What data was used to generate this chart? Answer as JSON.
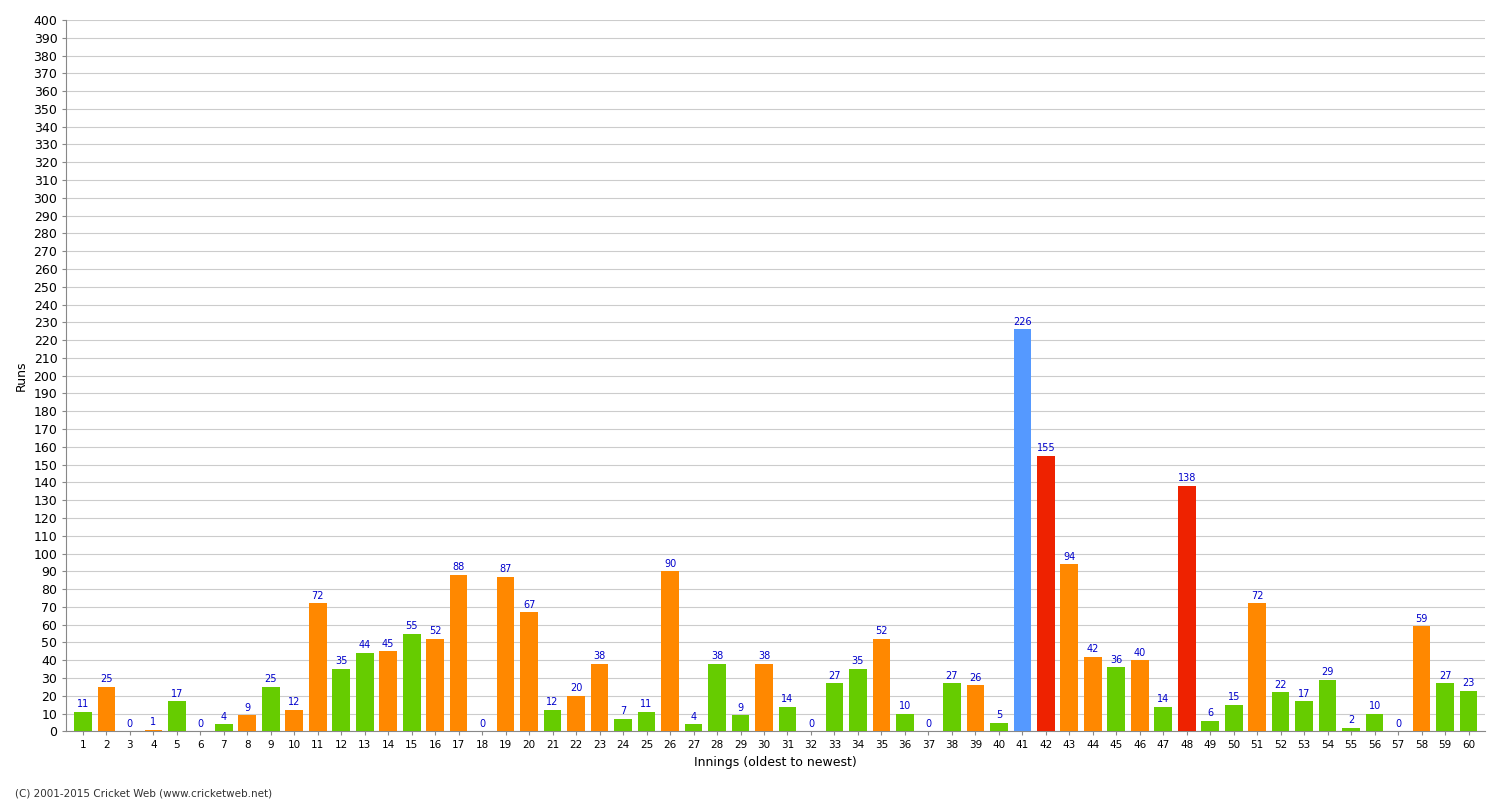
{
  "xlabel": "Innings (oldest to newest)",
  "ylabel": "Runs",
  "values": [
    11,
    25,
    0,
    1,
    17,
    0,
    4,
    9,
    25,
    12,
    72,
    35,
    44,
    45,
    55,
    52,
    88,
    0,
    87,
    67,
    12,
    20,
    38,
    7,
    11,
    90,
    4,
    38,
    9,
    38,
    14,
    0,
    27,
    35,
    52,
    10,
    0,
    27,
    26,
    5,
    226,
    155,
    94,
    42,
    36,
    40,
    14,
    138,
    6,
    15,
    72,
    22,
    17,
    29,
    2,
    10,
    0,
    59,
    27,
    23
  ],
  "colors": [
    "#66cc00",
    "#ff8800",
    "#66cc00",
    "#ff8800",
    "#66cc00",
    "#66cc00",
    "#66cc00",
    "#ff8800",
    "#66cc00",
    "#ff8800",
    "#ff8800",
    "#66cc00",
    "#66cc00",
    "#ff8800",
    "#66cc00",
    "#ff8800",
    "#ff8800",
    "#66cc00",
    "#ff8800",
    "#ff8800",
    "#66cc00",
    "#ff8800",
    "#ff8800",
    "#66cc00",
    "#66cc00",
    "#ff8800",
    "#66cc00",
    "#66cc00",
    "#66cc00",
    "#ff8800",
    "#66cc00",
    "#66cc00",
    "#66cc00",
    "#66cc00",
    "#ff8800",
    "#66cc00",
    "#66cc00",
    "#66cc00",
    "#ff8800",
    "#66cc00",
    "#5599ff",
    "#ee2200",
    "#ff8800",
    "#ff8800",
    "#66cc00",
    "#ff8800",
    "#66cc00",
    "#ee2200",
    "#66cc00",
    "#66cc00",
    "#ff8800",
    "#66cc00",
    "#66cc00",
    "#66cc00",
    "#66cc00",
    "#66cc00",
    "#66cc00",
    "#ff8800",
    "#66cc00",
    "#66cc00"
  ],
  "labels": [
    "1",
    "2",
    "3",
    "4",
    "5",
    "6",
    "7",
    "8",
    "9",
    "10",
    "11",
    "12",
    "13",
    "14",
    "15",
    "16",
    "17",
    "18",
    "19",
    "20",
    "21",
    "22",
    "23",
    "24",
    "25",
    "26",
    "27",
    "28",
    "29",
    "30",
    "31",
    "32",
    "33",
    "34",
    "35",
    "36",
    "37",
    "38",
    "39",
    "40",
    "41",
    "42",
    "43",
    "44",
    "45",
    "46",
    "47",
    "48",
    "49",
    "50",
    "51",
    "52",
    "53",
    "54",
    "55",
    "56",
    "57",
    "58",
    "59",
    "60"
  ],
  "ylim": [
    0,
    400
  ],
  "yticks": [
    0,
    10,
    20,
    30,
    40,
    50,
    60,
    70,
    80,
    90,
    100,
    110,
    120,
    130,
    140,
    150,
    160,
    170,
    180,
    190,
    200,
    210,
    220,
    230,
    240,
    250,
    260,
    270,
    280,
    290,
    300,
    310,
    320,
    330,
    340,
    350,
    360,
    370,
    380,
    390,
    400
  ],
  "bg_color": "#ffffff",
  "plot_bg_color": "#ffffff",
  "grid_color": "#cccccc",
  "label_color": "#0000cc",
  "bar_width": 0.75,
  "font_size_axis": 9,
  "font_size_label": 7,
  "copyright": "(C) 2001-2015 Cricket Web (www.cricketweb.net)"
}
